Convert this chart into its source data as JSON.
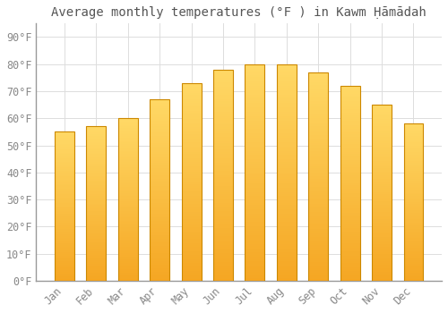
{
  "title": "Average monthly temperatures (°F ) in Kawm Ḥāmādah",
  "months": [
    "Jan",
    "Feb",
    "Mar",
    "Apr",
    "May",
    "Jun",
    "Jul",
    "Aug",
    "Sep",
    "Oct",
    "Nov",
    "Dec"
  ],
  "values": [
    55,
    57,
    60,
    67,
    73,
    78,
    80,
    80,
    77,
    72,
    65,
    58
  ],
  "bar_color_top": "#FFD966",
  "bar_color_bottom": "#F5A623",
  "bar_edge_color": "#CC8800",
  "background_color": "#FFFFFF",
  "grid_color": "#DDDDDD",
  "yticks": [
    0,
    10,
    20,
    30,
    40,
    50,
    60,
    70,
    80,
    90
  ],
  "ylim": [
    0,
    95
  ],
  "title_fontsize": 10,
  "tick_fontsize": 8.5,
  "title_color": "#555555",
  "tick_color": "#888888",
  "bar_width": 0.62
}
